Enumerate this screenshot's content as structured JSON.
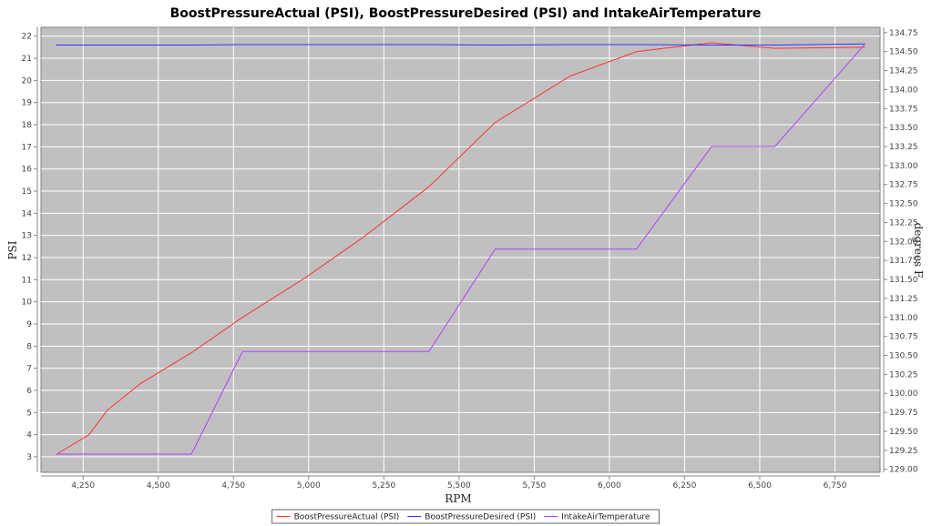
{
  "chart_data": {
    "type": "line",
    "title": "BoostPressureActual (PSI), BoostPressureDesired (PSI) and IntakeAirTemperature",
    "xlabel": "RPM",
    "ylabel": "PSI",
    "y2label": "degrees F",
    "xlim": [
      4110,
      6900
    ],
    "ylim": [
      2.3,
      22.4
    ],
    "y2lim": [
      128.96,
      134.82
    ],
    "x_ticks": [
      4250,
      4500,
      4750,
      5000,
      5250,
      5500,
      5750,
      6000,
      6250,
      6500,
      6750
    ],
    "x_tick_labels": [
      "4,250",
      "4,500",
      "4,750",
      "5,000",
      "5,250",
      "5,500",
      "5,750",
      "6,000",
      "6,250",
      "6,500",
      "6,750"
    ],
    "y_ticks": [
      3,
      4,
      5,
      6,
      7,
      8,
      9,
      10,
      11,
      12,
      13,
      14,
      15,
      16,
      17,
      18,
      19,
      20,
      21,
      22
    ],
    "y2_ticks": [
      129.0,
      129.25,
      129.5,
      129.75,
      130.0,
      130.25,
      130.5,
      130.75,
      131.0,
      131.25,
      131.5,
      131.75,
      132.0,
      132.25,
      132.5,
      132.75,
      133.0,
      133.25,
      133.5,
      133.75,
      134.0,
      134.25,
      134.5,
      134.75
    ],
    "y2_tick_labels": [
      "129.00",
      "129.25",
      "129.50",
      "129.75",
      "130.00",
      "130.25",
      "130.50",
      "130.75",
      "131.00",
      "131.25",
      "131.50",
      "131.75",
      "132.00",
      "132.25",
      "132.50",
      "132.75",
      "133.00",
      "133.25",
      "133.50",
      "133.75",
      "134.00",
      "134.25",
      "134.50",
      "134.75"
    ],
    "grid": true,
    "legend_position": "bottom",
    "background": "#c0c0c0",
    "gridline_color": "#ffffff",
    "series": [
      {
        "name": "BoostPressureActual (PSI)",
        "color": "#ff3333",
        "axis": "left",
        "x": [
          4160,
          4270,
          4330,
          4440,
          4610,
          4780,
          4990,
          5180,
          5400,
          5620,
          5870,
          6090,
          6180,
          6340,
          6550,
          6850
        ],
        "y": [
          3.1,
          4.0,
          5.1,
          6.3,
          7.7,
          9.3,
          11.1,
          12.9,
          15.2,
          18.1,
          20.2,
          21.3,
          21.45,
          21.7,
          21.45,
          21.5
        ]
      },
      {
        "name": "BoostPressureDesired (PSI)",
        "color": "#3333ff",
        "axis": "left",
        "x": [
          4160,
          4610,
          4780,
          5400,
          5620,
          5870,
          6090,
          6340,
          6550,
          6850
        ],
        "y": [
          21.6,
          21.6,
          21.62,
          21.62,
          21.6,
          21.62,
          21.62,
          21.6,
          21.6,
          21.65
        ]
      },
      {
        "name": "IntakeAirTemperature",
        "color": "#b040ff",
        "axis": "right",
        "x": [
          4160,
          4610,
          4780,
          5400,
          5620,
          6090,
          6340,
          6550,
          6850
        ],
        "y": [
          129.2,
          129.2,
          130.55,
          130.55,
          131.9,
          131.9,
          133.25,
          133.25,
          134.6
        ]
      }
    ]
  }
}
